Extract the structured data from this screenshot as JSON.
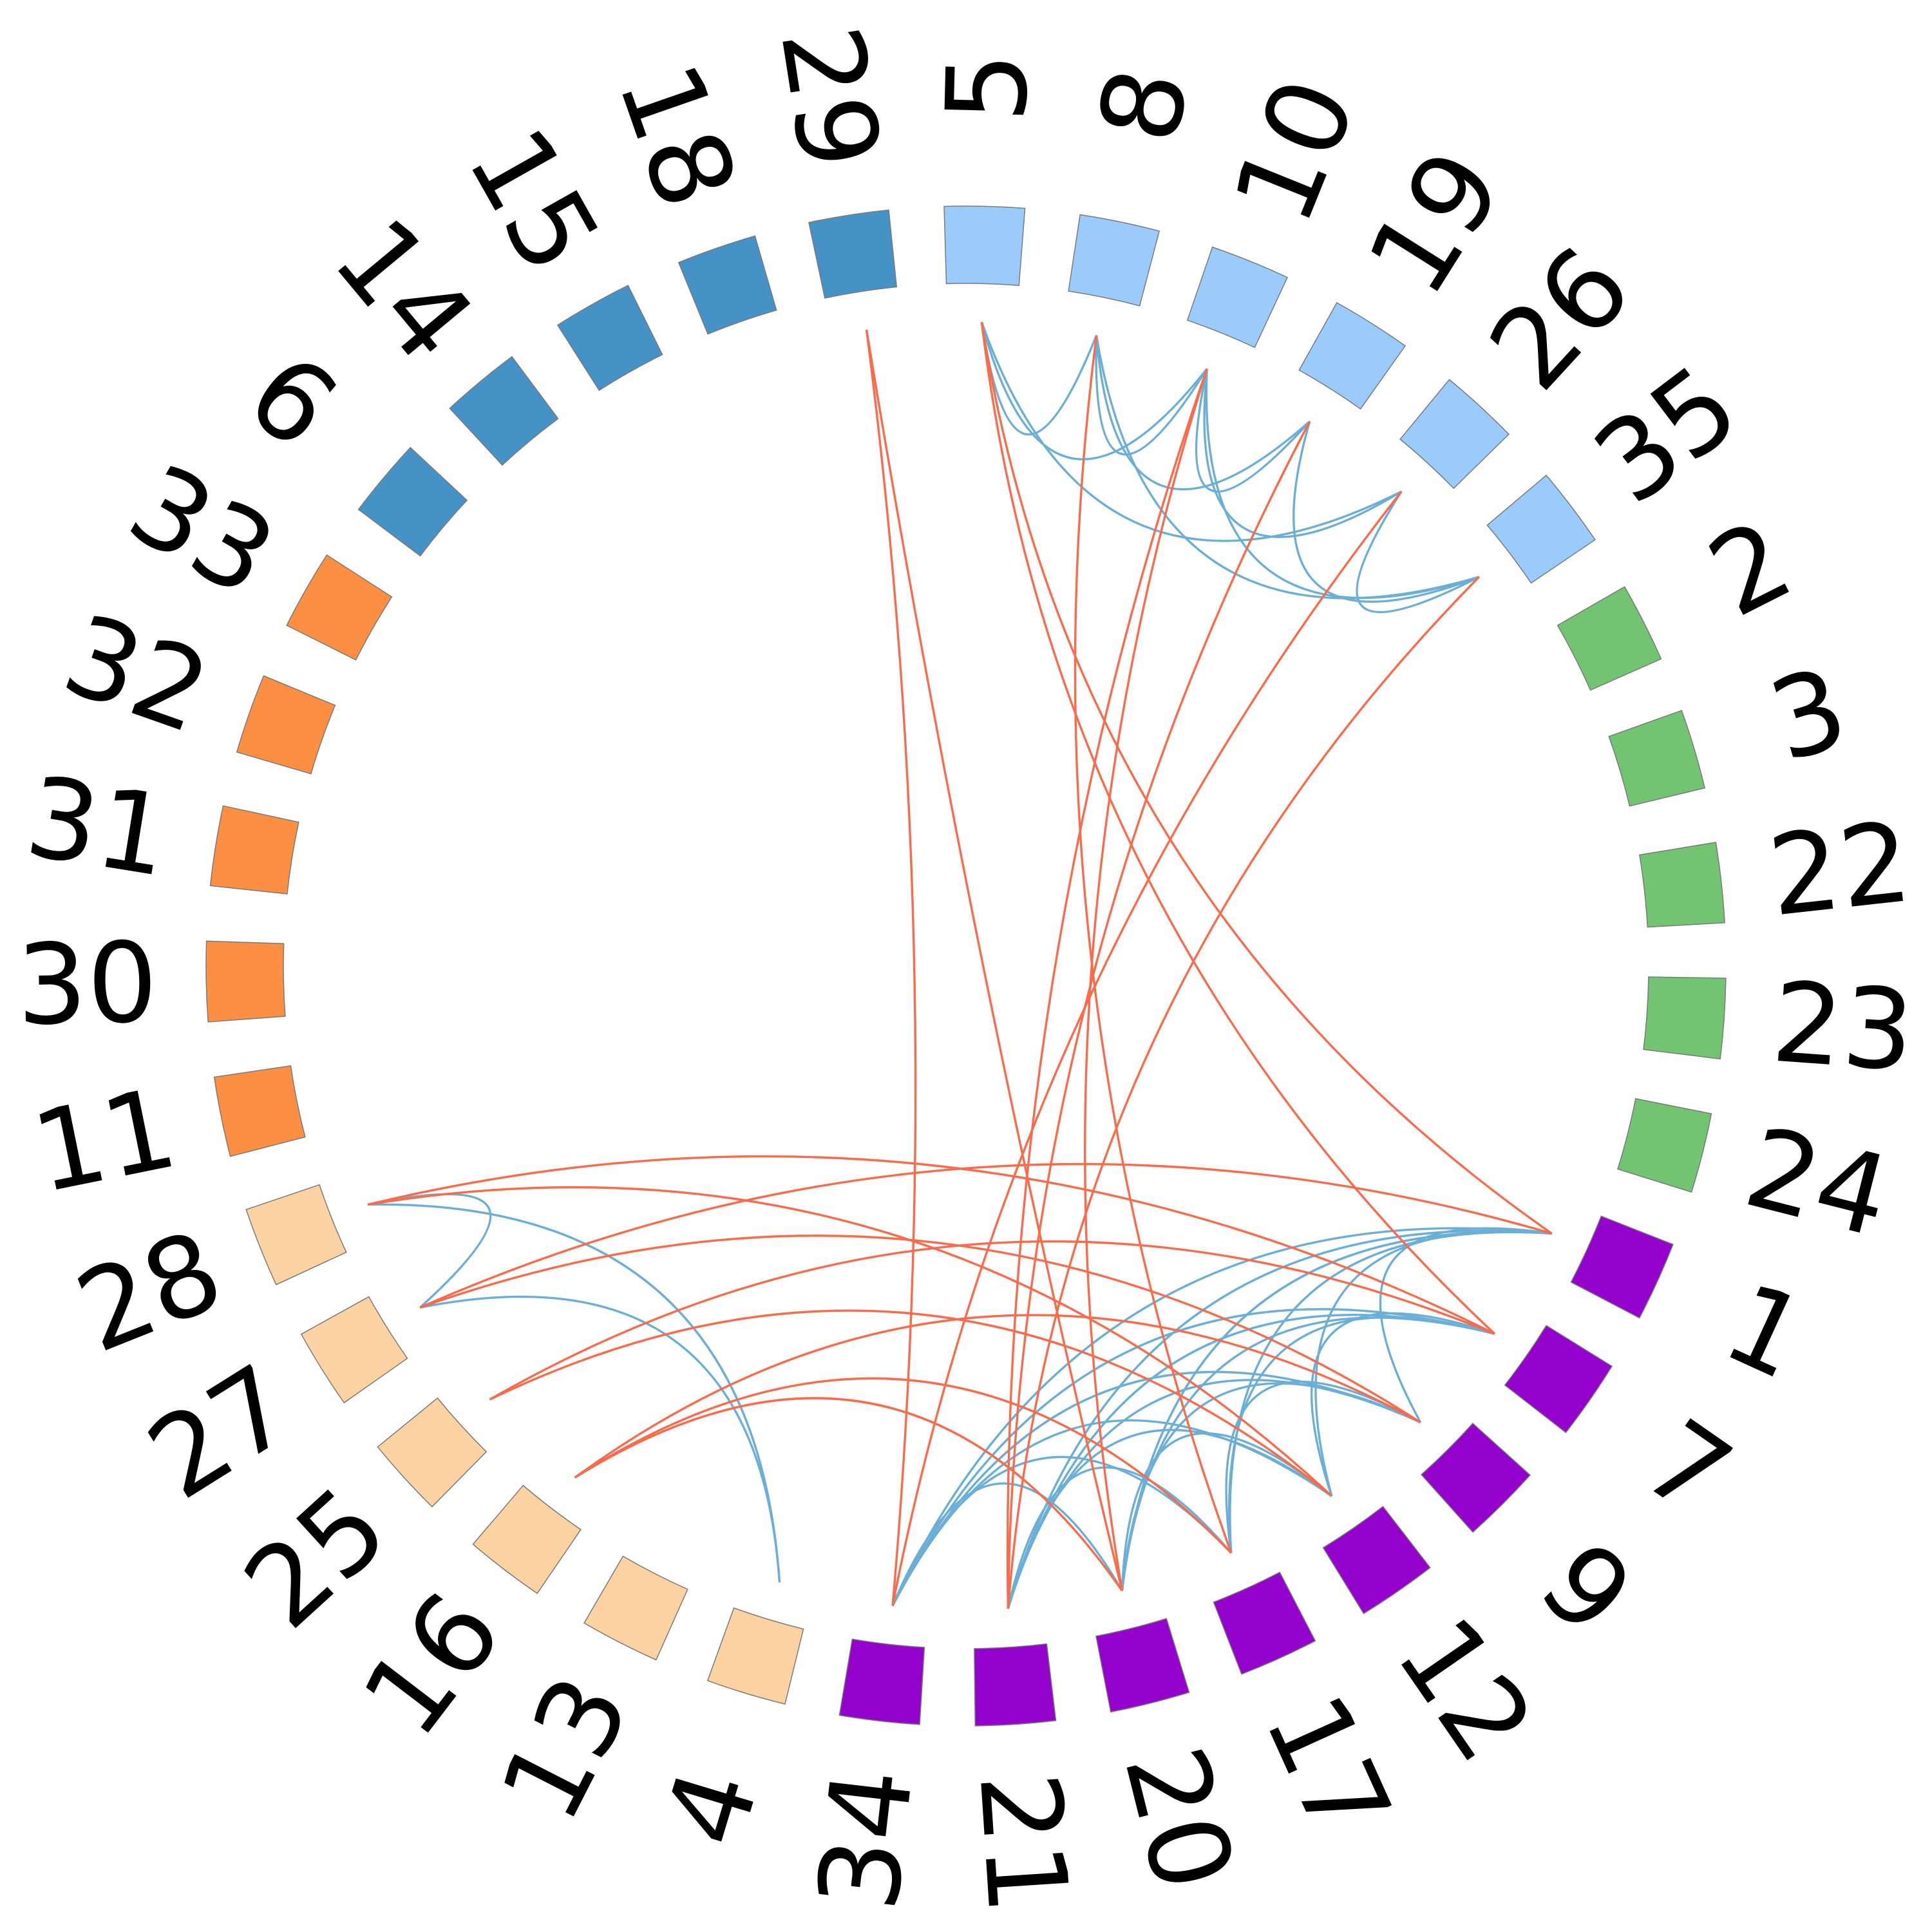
{
  "chart_data": {
    "type": "chord",
    "title": "",
    "groups": [
      {
        "name": "group-blue-dark",
        "color": "#4592c6",
        "members": [
          "6",
          "14",
          "15",
          "18",
          "29"
        ]
      },
      {
        "name": "group-blue-light",
        "color": "#9acbfb",
        "members": [
          "5",
          "8",
          "10",
          "19",
          "26",
          "35"
        ]
      },
      {
        "name": "group-green",
        "color": "#72c472",
        "members": [
          "2",
          "3",
          "22",
          "23",
          "24"
        ]
      },
      {
        "name": "group-purple",
        "color": "#9400cc",
        "members": [
          "1",
          "7",
          "9",
          "12",
          "17",
          "20",
          "21",
          "34"
        ]
      },
      {
        "name": "group-peach",
        "color": "#fbd3a2",
        "members": [
          "4",
          "13",
          "16",
          "25",
          "27",
          "28"
        ]
      },
      {
        "name": "group-orange",
        "color": "#fc8f42",
        "members": [
          "11",
          "30",
          "31",
          "32",
          "33"
        ]
      }
    ],
    "nodes_clockwise_from_top": [
      "5",
      "8",
      "10",
      "19",
      "26",
      "35",
      "2",
      "3",
      "22",
      "23",
      "24",
      "1",
      "7",
      "9",
      "12",
      "17",
      "20",
      "21",
      "34",
      "4",
      "13",
      "16",
      "25",
      "27",
      "28",
      "11",
      "30",
      "31",
      "32",
      "33",
      "6",
      "14",
      "15",
      "18",
      "29"
    ],
    "edge_colors": {
      "blue": "#6baed6",
      "red": "#fb6a4a"
    },
    "edges": [
      {
        "source": "29",
        "target": "20",
        "color": "red"
      },
      {
        "source": "29",
        "target": "34",
        "color": "red"
      },
      {
        "source": "5",
        "target": "1",
        "color": "red"
      },
      {
        "source": "5",
        "target": "7",
        "color": "red"
      },
      {
        "source": "8",
        "target": "17",
        "color": "red"
      },
      {
        "source": "10",
        "target": "21",
        "color": "red"
      },
      {
        "source": "10",
        "target": "20",
        "color": "red"
      },
      {
        "source": "19",
        "target": "21",
        "color": "red"
      },
      {
        "source": "26",
        "target": "34",
        "color": "red"
      },
      {
        "source": "35",
        "target": "21",
        "color": "red"
      },
      {
        "source": "28",
        "target": "7",
        "color": "red"
      },
      {
        "source": "28",
        "target": "12",
        "color": "red"
      },
      {
        "source": "27",
        "target": "1",
        "color": "red"
      },
      {
        "source": "27",
        "target": "9",
        "color": "red"
      },
      {
        "source": "25",
        "target": "7",
        "color": "red"
      },
      {
        "source": "25",
        "target": "12",
        "color": "red"
      },
      {
        "source": "16",
        "target": "9",
        "color": "red"
      },
      {
        "source": "16",
        "target": "17",
        "color": "red"
      },
      {
        "source": "16",
        "target": "20",
        "color": "red"
      },
      {
        "source": "5",
        "target": "8",
        "color": "blue"
      },
      {
        "source": "5",
        "target": "10",
        "color": "blue"
      },
      {
        "source": "5",
        "target": "26",
        "color": "blue"
      },
      {
        "source": "8",
        "target": "10",
        "color": "blue"
      },
      {
        "source": "8",
        "target": "19",
        "color": "blue"
      },
      {
        "source": "8",
        "target": "35",
        "color": "blue"
      },
      {
        "source": "10",
        "target": "19",
        "color": "blue"
      },
      {
        "source": "10",
        "target": "26",
        "color": "blue"
      },
      {
        "source": "10",
        "target": "35",
        "color": "blue"
      },
      {
        "source": "19",
        "target": "35",
        "color": "blue"
      },
      {
        "source": "26",
        "target": "35",
        "color": "blue"
      },
      {
        "source": "28",
        "target": "4",
        "color": "blue"
      },
      {
        "source": "27",
        "target": "28",
        "color": "blue"
      },
      {
        "source": "27",
        "target": "4",
        "color": "blue"
      },
      {
        "source": "1",
        "target": "34",
        "color": "blue"
      },
      {
        "source": "1",
        "target": "21",
        "color": "blue"
      },
      {
        "source": "1",
        "target": "20",
        "color": "blue"
      },
      {
        "source": "1",
        "target": "17",
        "color": "blue"
      },
      {
        "source": "1",
        "target": "12",
        "color": "blue"
      },
      {
        "source": "1",
        "target": "9",
        "color": "blue"
      },
      {
        "source": "7",
        "target": "34",
        "color": "blue"
      },
      {
        "source": "7",
        "target": "21",
        "color": "blue"
      },
      {
        "source": "7",
        "target": "20",
        "color": "blue"
      },
      {
        "source": "7",
        "target": "17",
        "color": "blue"
      },
      {
        "source": "7",
        "target": "12",
        "color": "blue"
      },
      {
        "source": "9",
        "target": "34",
        "color": "blue"
      },
      {
        "source": "9",
        "target": "21",
        "color": "blue"
      },
      {
        "source": "9",
        "target": "20",
        "color": "blue"
      },
      {
        "source": "9",
        "target": "17",
        "color": "blue"
      },
      {
        "source": "12",
        "target": "34",
        "color": "blue"
      },
      {
        "source": "12",
        "target": "21",
        "color": "blue"
      },
      {
        "source": "12",
        "target": "20",
        "color": "blue"
      },
      {
        "source": "17",
        "target": "34",
        "color": "blue"
      },
      {
        "source": "17",
        "target": "21",
        "color": "blue"
      },
      {
        "source": "20",
        "target": "34",
        "color": "blue"
      }
    ]
  }
}
